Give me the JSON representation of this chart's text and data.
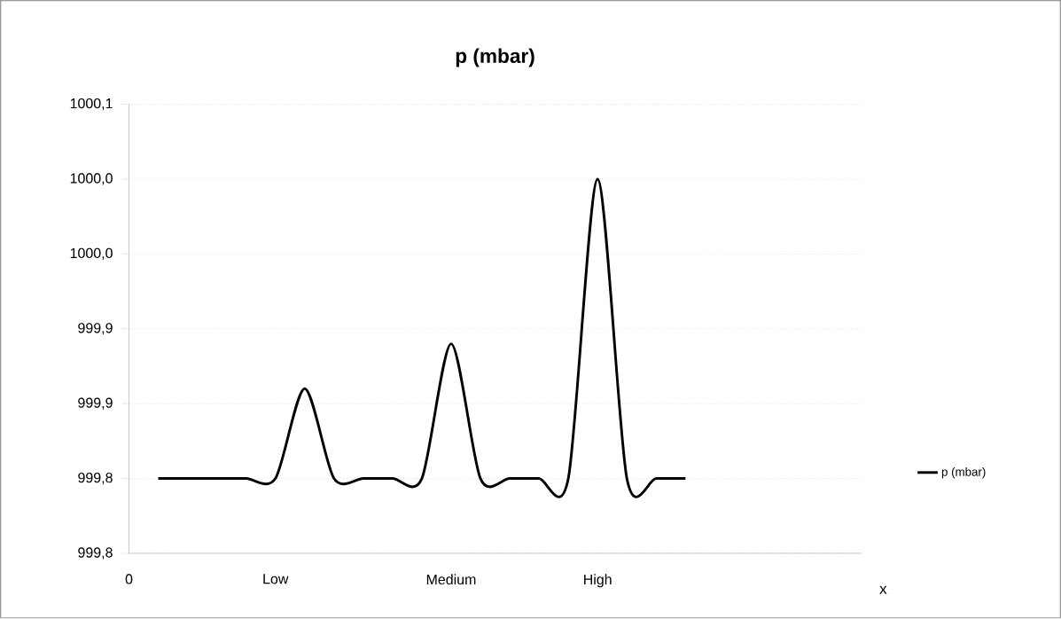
{
  "chart_data": {
    "type": "line",
    "title": "p (mbar)",
    "xlabel": "x",
    "categories": [
      "0",
      null,
      null,
      null,
      null,
      "Low",
      null,
      null,
      null,
      null,
      null,
      "Medium",
      null,
      null,
      null,
      null,
      "High",
      null,
      null,
      null,
      null,
      null,
      null,
      null,
      null,
      null
    ],
    "series": [
      {
        "name": "p (mbar)",
        "color": "#000000",
        "values": [
          null,
          999.8,
          999.8,
          999.8,
          999.8,
          999.8,
          999.86,
          999.8,
          999.8,
          999.8,
          999.8,
          999.89,
          999.8,
          999.8,
          999.8,
          999.8,
          1000.0,
          999.8,
          999.8,
          999.8,
          null,
          null,
          null,
          null,
          null,
          null
        ]
      }
    ],
    "ylim": [
      999.75,
      1000.05
    ],
    "yticks": [
      {
        "value": 999.75,
        "label": "999,8"
      },
      {
        "value": 999.8,
        "label": "999,8"
      },
      {
        "value": 999.85,
        "label": "999,9"
      },
      {
        "value": 999.9,
        "label": "999,9"
      },
      {
        "value": 999.95,
        "label": "1000,0"
      },
      {
        "value": 1000.0,
        "label": "1000,0"
      },
      {
        "value": 1000.05,
        "label": "1000,1"
      }
    ],
    "grid": "y",
    "legend": "right",
    "marker": "none",
    "line_style": "solid"
  }
}
